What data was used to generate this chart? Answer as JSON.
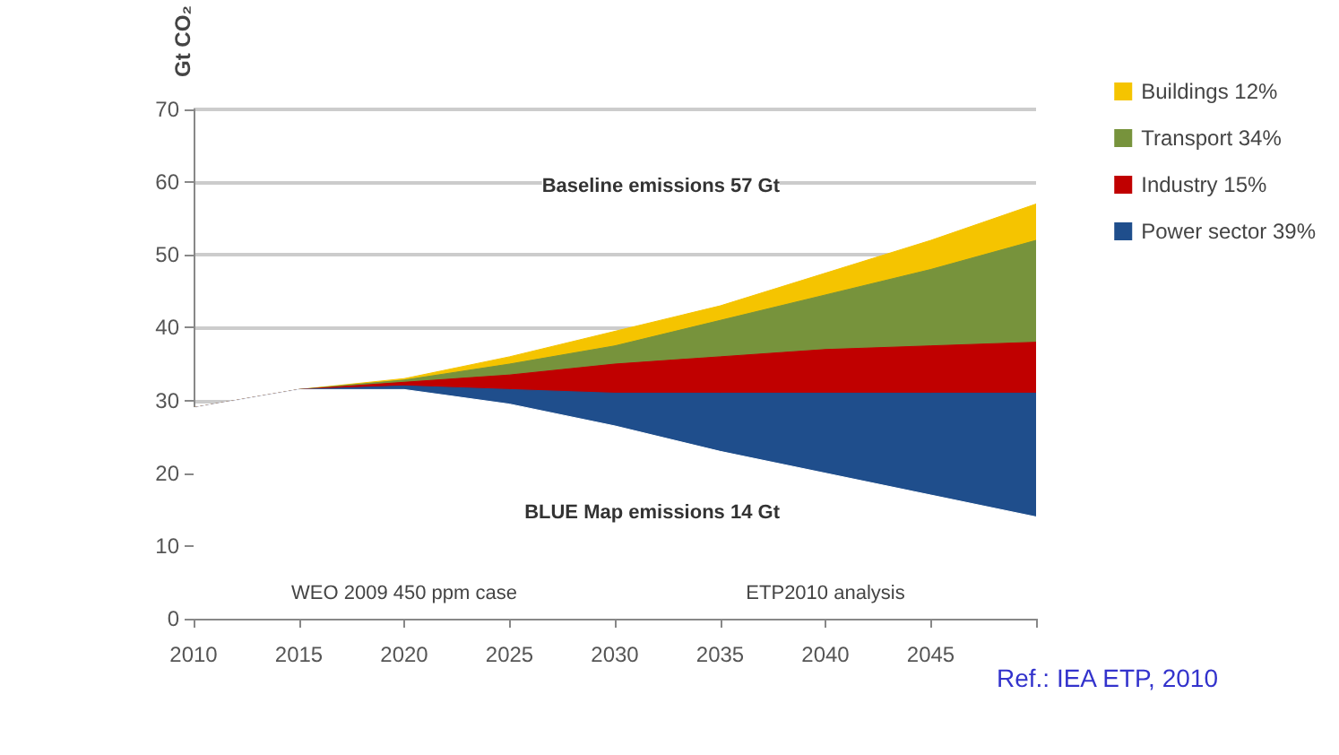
{
  "chart_data": {
    "type": "area",
    "ylabel": "Gt CO₂",
    "stacked": true,
    "x": [
      2010,
      2015,
      2020,
      2025,
      2030,
      2035,
      2040,
      2045,
      2050
    ],
    "series": [
      {
        "color": "#ffffff",
        "values": [
          29,
          31.5,
          31.5,
          29.5,
          26.5,
          23,
          20,
          17,
          14
        ]
      },
      {
        "name": "Power sector 39%",
        "color": "#1f4e8c",
        "values": [
          0,
          0,
          0.5,
          2,
          4.5,
          8,
          11,
          14,
          17
        ]
      },
      {
        "name": "Industry 15%",
        "color": "#c00000",
        "values": [
          0,
          0,
          0.5,
          2,
          4,
          5,
          6,
          6.5,
          7
        ]
      },
      {
        "name": "Transport 34%",
        "color": "#77933c",
        "values": [
          0,
          0,
          0.3,
          1.5,
          2.5,
          5,
          7.5,
          10.5,
          14
        ]
      },
      {
        "name": "Buildings 12%",
        "color": "#f5c400",
        "values": [
          0,
          0,
          0.2,
          1,
          2,
          2,
          3,
          4,
          5
        ]
      }
    ],
    "xlim": [
      2010,
      2050
    ],
    "xticks": [
      2010,
      2015,
      2020,
      2025,
      2030,
      2035,
      2040,
      2045,
      {
        "value": 2050,
        "label": null
      }
    ],
    "ylim": [
      0,
      70
    ],
    "yticks": [
      0,
      10,
      20,
      30,
      40,
      50,
      60,
      70
    ],
    "grid": "y",
    "legend": "right",
    "annotations": [
      "Baseline emissions 57 Gt",
      "BLUE Map emissions 14 Gt",
      "WEO 2009 450 ppm case",
      "ETP2010 analysis",
      "Ref.: IEA ETP, 2010"
    ]
  }
}
